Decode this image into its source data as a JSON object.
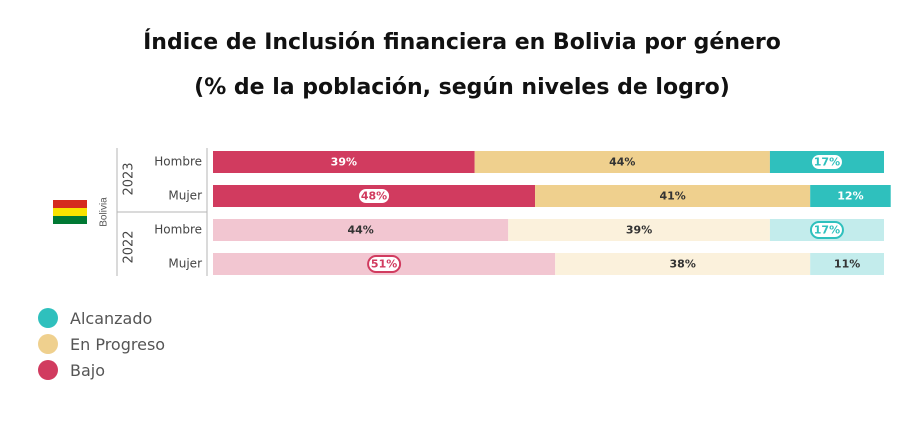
{
  "chart_data": {
    "type": "bar",
    "orientation": "horizontal",
    "stacked": true,
    "title": "Índice de Inclusión financiera en Bolivia por género",
    "subtitle": "(% de la población, según niveles de logro)",
    "country": "Bolivia",
    "groups": [
      {
        "year": "2023",
        "rows": [
          {
            "category": "Hombre",
            "values": {
              "Bajo": 39,
              "En Progreso": 44,
              "Alcanzado": 17
            },
            "highlight": "Alcanzado"
          },
          {
            "category": "Mujer",
            "values": {
              "Bajo": 48,
              "En Progreso": 41,
              "Alcanzado": 12
            },
            "highlight": "Bajo"
          }
        ]
      },
      {
        "year": "2022",
        "rows": [
          {
            "category": "Hombre",
            "values": {
              "Bajo": 44,
              "En Progreso": 39,
              "Alcanzado": 17
            },
            "highlight": "Alcanzado"
          },
          {
            "category": "Mujer",
            "values": {
              "Bajo": 51,
              "En Progreso": 38,
              "Alcanzado": 11
            },
            "highlight": "Bajo"
          }
        ]
      }
    ],
    "series": [
      {
        "name": "Bajo",
        "color": "#d13b5f",
        "faded_color": "#f2c6d1"
      },
      {
        "name": "En Progreso",
        "color": "#efd08e",
        "faded_color": "#fbf1dc"
      },
      {
        "name": "Alcanzado",
        "color": "#2fc0bd",
        "faded_color": "#c3ecec"
      }
    ],
    "legend": {
      "position": "bottom-left",
      "order": [
        "Alcanzado",
        "En Progreso",
        "Bajo"
      ]
    },
    "faded_year": "2022",
    "xlim": [
      0,
      100
    ],
    "unit": "%",
    "grid": false
  },
  "flag": {
    "colors": [
      "#d52b1e",
      "#f9e300",
      "#007934"
    ],
    "icon": "bolivia-flag-icon"
  }
}
